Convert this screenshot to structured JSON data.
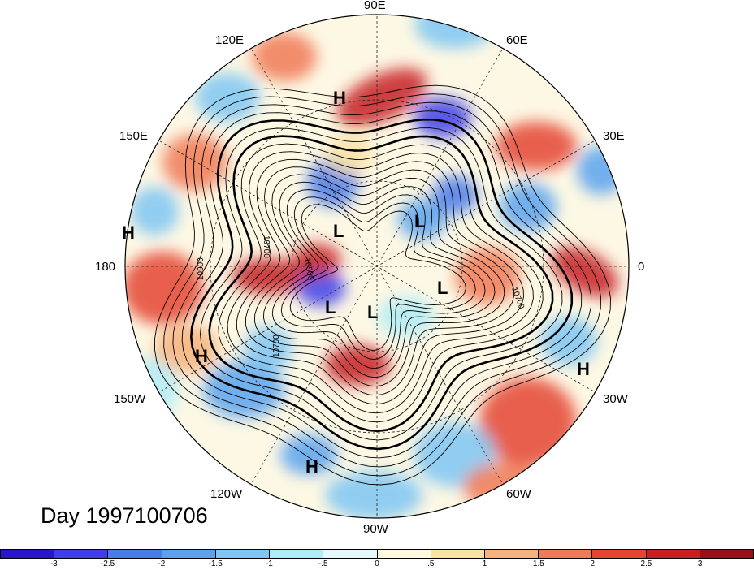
{
  "title": "Day 1997100706",
  "lon_labels": {
    "e90": "90E",
    "e120": "120E",
    "e60": "60E",
    "e150": "150E",
    "e30": "30E",
    "w180": "180",
    "e0": "0",
    "w150": "150W",
    "w30": "30W",
    "w120": "120W",
    "w60": "60W",
    "w90": "90W"
  },
  "contour_labels": [
    "10700",
    "10900",
    "10700",
    "10700",
    "10500"
  ],
  "pressure_marks": {
    "highs": [
      "H",
      "H",
      "H",
      "H",
      "H"
    ],
    "lows": [
      "L",
      "L",
      "L",
      "L",
      "L"
    ]
  },
  "colorbar": {
    "colors": [
      "#2a15c8",
      "#3f3ee8",
      "#4a7bea",
      "#5ba2ee",
      "#7ec6f3",
      "#b0ecf7",
      "#e6f8fb",
      "#fdfadf",
      "#f9e2a6",
      "#f6b27d",
      "#f07a56",
      "#e44434",
      "#c71f24",
      "#9a0f1a"
    ],
    "tick_labels": [
      "-3",
      "-2.5",
      "-2",
      "-1.5",
      "-1",
      "-.5",
      "0",
      ".5",
      "1",
      "1.5",
      "2",
      "2.5",
      "3"
    ]
  }
}
